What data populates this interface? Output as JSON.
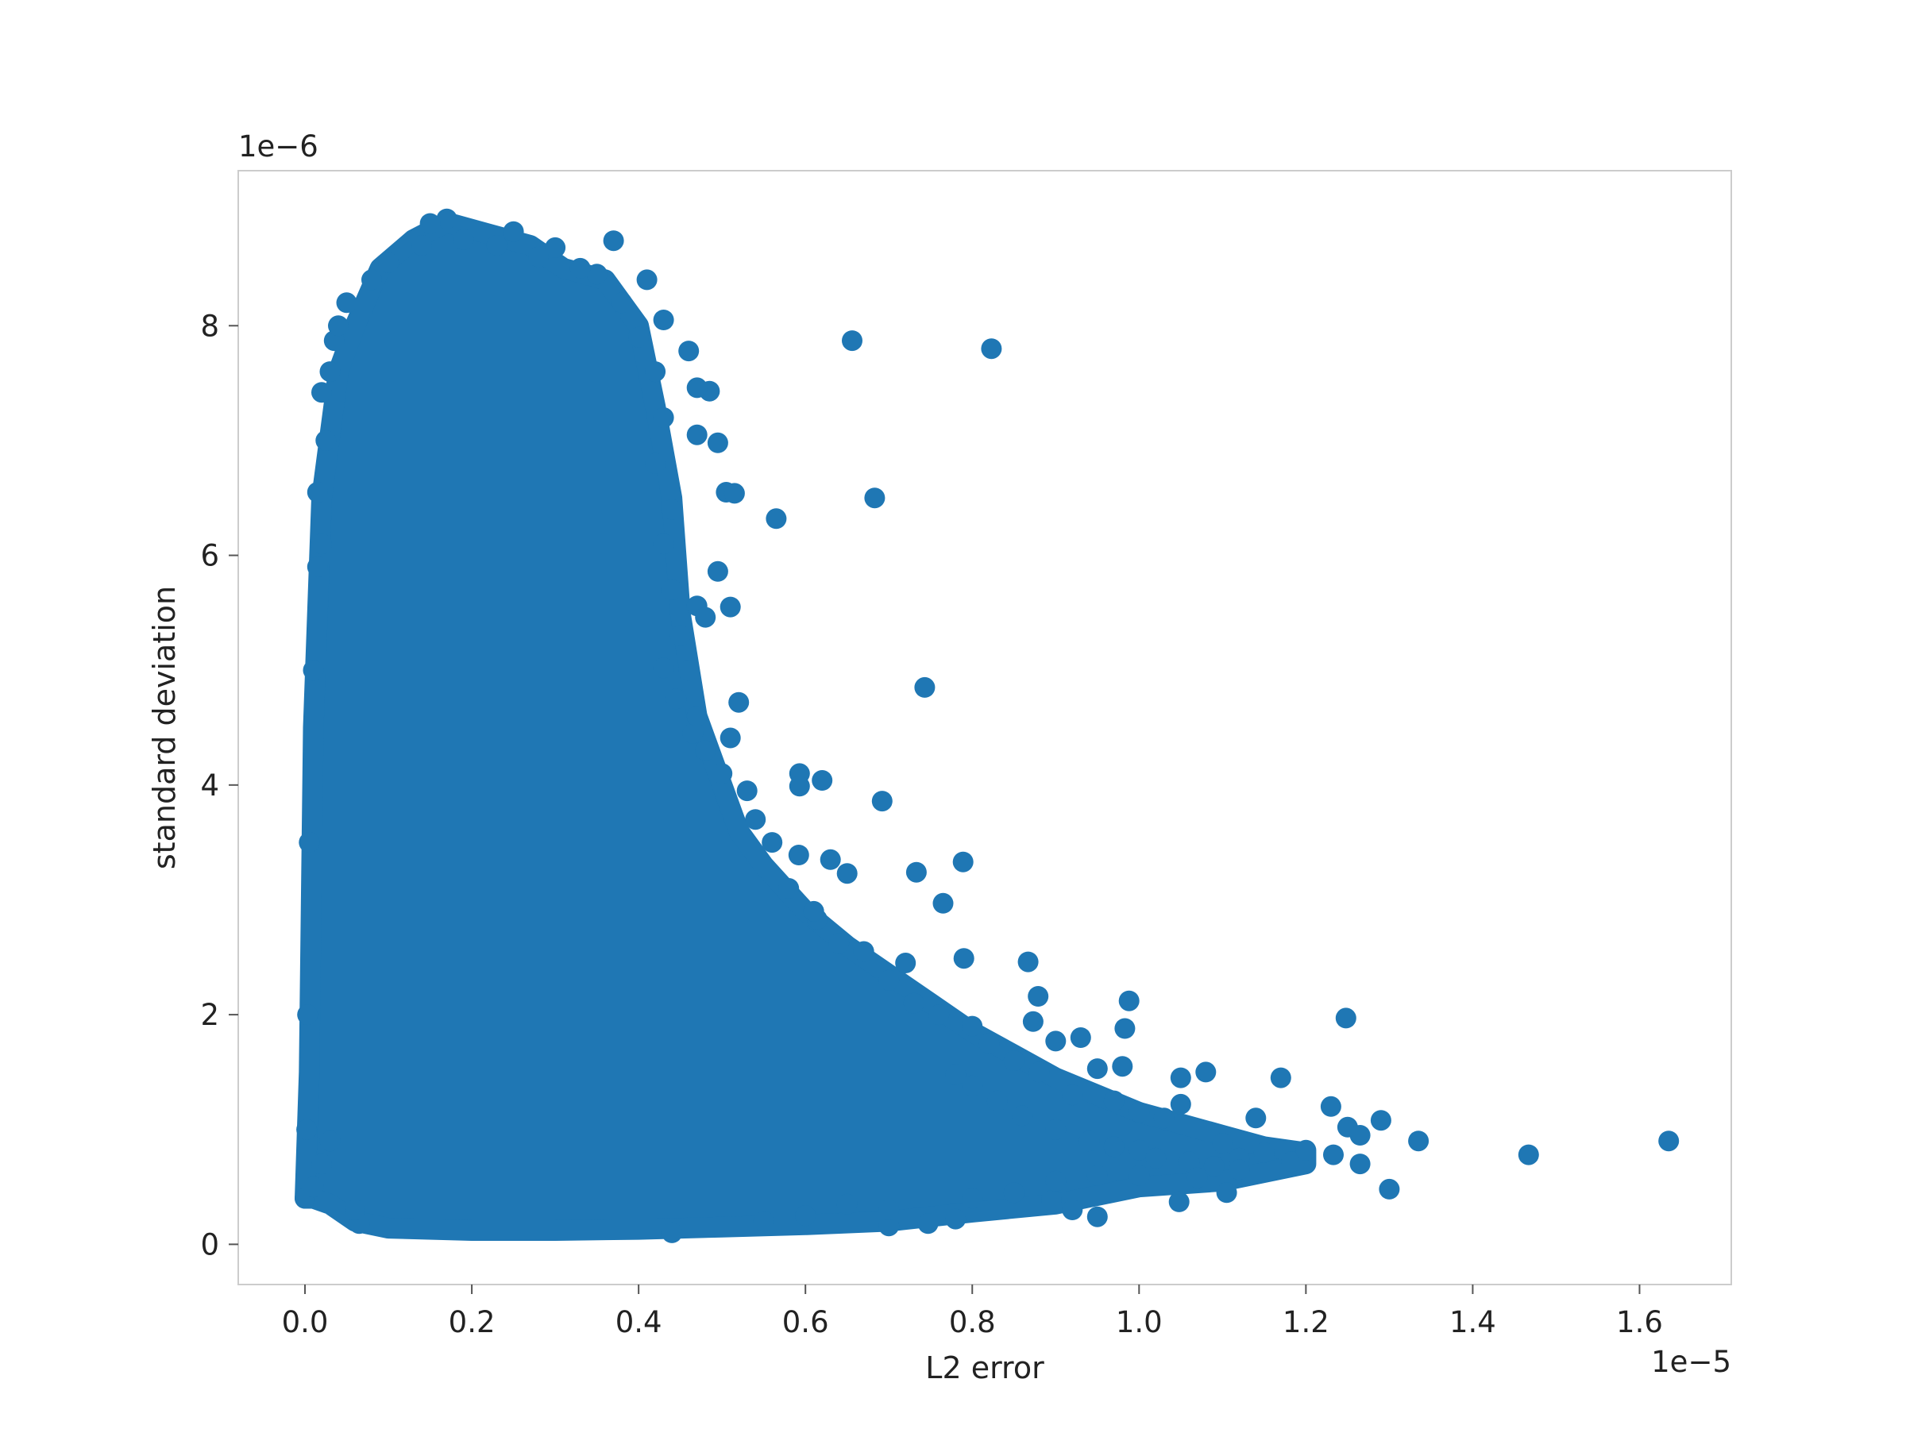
{
  "chart_data": {
    "type": "scatter",
    "title": "",
    "xlabel": "L2 error",
    "ylabel": "standard deviation",
    "x_offset_text": "1e−5",
    "y_offset_text": "1e−6",
    "xlim": [
      -0.08,
      1.71
    ],
    "ylim": [
      -0.35,
      9.35
    ],
    "x_ticks": [
      0.0,
      0.2,
      0.4,
      0.6,
      0.8,
      1.0,
      1.2,
      1.4,
      1.6
    ],
    "x_tick_labels": [
      "0.0",
      "0.2",
      "0.4",
      "0.6",
      "0.8",
      "1.0",
      "1.2",
      "1.4",
      "1.6"
    ],
    "y_ticks": [
      0,
      2,
      4,
      6,
      8
    ],
    "y_tick_labels": [
      "0",
      "2",
      "4",
      "6",
      "8"
    ],
    "grid": false,
    "legend": "none",
    "marker_color": "#1f77b4",
    "dense_region_outline": [
      [
        0.0,
        0.4
      ],
      [
        0.005,
        1.5
      ],
      [
        0.01,
        4.5
      ],
      [
        0.02,
        6.5
      ],
      [
        0.04,
        7.6
      ],
      [
        0.06,
        8.0
      ],
      [
        0.09,
        8.5
      ],
      [
        0.13,
        8.75
      ],
      [
        0.17,
        8.9
      ],
      [
        0.22,
        8.8
      ],
      [
        0.27,
        8.7
      ],
      [
        0.31,
        8.5
      ],
      [
        0.36,
        8.4
      ],
      [
        0.4,
        8.0
      ],
      [
        0.42,
        7.3
      ],
      [
        0.44,
        6.5
      ],
      [
        0.45,
        5.5
      ],
      [
        0.47,
        4.6
      ],
      [
        0.5,
        4.0
      ],
      [
        0.52,
        3.6
      ],
      [
        0.55,
        3.3
      ],
      [
        0.6,
        2.9
      ],
      [
        0.65,
        2.6
      ],
      [
        0.7,
        2.35
      ],
      [
        0.75,
        2.1
      ],
      [
        0.8,
        1.85
      ],
      [
        0.85,
        1.65
      ],
      [
        0.9,
        1.45
      ],
      [
        0.95,
        1.3
      ],
      [
        1.0,
        1.15
      ],
      [
        1.05,
        1.05
      ],
      [
        1.1,
        0.95
      ],
      [
        1.15,
        0.85
      ],
      [
        1.2,
        0.8
      ],
      [
        1.2,
        0.7
      ],
      [
        1.1,
        0.55
      ],
      [
        1.0,
        0.5
      ],
      [
        0.9,
        0.35
      ],
      [
        0.8,
        0.28
      ],
      [
        0.7,
        0.2
      ],
      [
        0.6,
        0.17
      ],
      [
        0.5,
        0.15
      ],
      [
        0.4,
        0.13
      ],
      [
        0.3,
        0.12
      ],
      [
        0.2,
        0.12
      ],
      [
        0.1,
        0.14
      ],
      [
        0.06,
        0.2
      ],
      [
        0.03,
        0.35
      ],
      [
        0.01,
        0.4
      ]
    ],
    "points": [
      [
        0.656,
        7.87
      ],
      [
        0.823,
        7.8
      ],
      [
        0.683,
        6.5
      ],
      [
        0.565,
        6.32
      ],
      [
        0.743,
        4.85
      ],
      [
        0.692,
        3.86
      ],
      [
        0.789,
        3.33
      ],
      [
        0.733,
        3.24
      ],
      [
        0.765,
        2.97
      ],
      [
        0.65,
        3.23
      ],
      [
        0.593,
        4.1
      ],
      [
        0.62,
        4.04
      ],
      [
        0.593,
        3.99
      ],
      [
        0.592,
        3.39
      ],
      [
        0.63,
        3.35
      ],
      [
        0.614,
        2.83
      ],
      [
        0.72,
        2.45
      ],
      [
        0.79,
        2.49
      ],
      [
        0.867,
        2.46
      ],
      [
        0.879,
        2.16
      ],
      [
        0.988,
        2.12
      ],
      [
        0.983,
        1.88
      ],
      [
        0.873,
        1.94
      ],
      [
        0.9,
        1.77
      ],
      [
        0.93,
        1.8
      ],
      [
        0.95,
        1.53
      ],
      [
        0.98,
        1.55
      ],
      [
        1.05,
        1.45
      ],
      [
        1.08,
        1.5
      ],
      [
        1.17,
        1.45
      ],
      [
        1.248,
        1.97
      ],
      [
        1.23,
        1.2
      ],
      [
        1.29,
        1.08
      ],
      [
        1.25,
        1.02
      ],
      [
        1.265,
        0.95
      ],
      [
        1.335,
        0.9
      ],
      [
        1.467,
        0.78
      ],
      [
        1.635,
        0.9
      ],
      [
        1.3,
        0.48
      ],
      [
        1.265,
        0.7
      ],
      [
        1.233,
        0.78
      ],
      [
        1.183,
        0.72
      ],
      [
        1.14,
        1.1
      ],
      [
        1.12,
        0.75
      ],
      [
        1.105,
        0.45
      ],
      [
        1.048,
        0.37
      ],
      [
        0.95,
        0.24
      ],
      [
        0.92,
        0.3
      ],
      [
        0.895,
        0.38
      ],
      [
        0.78,
        0.22
      ],
      [
        0.747,
        0.18
      ],
      [
        0.7,
        0.16
      ],
      [
        0.44,
        0.1
      ],
      [
        0.065,
        0.18
      ],
      [
        0.06,
        0.3
      ],
      [
        0.52,
        4.72
      ],
      [
        0.51,
        4.41
      ],
      [
        0.465,
        4.45
      ],
      [
        0.445,
        4.75
      ],
      [
        0.43,
        5.02
      ],
      [
        0.51,
        5.55
      ],
      [
        0.47,
        5.56
      ],
      [
        0.48,
        5.46
      ],
      [
        0.495,
        5.86
      ],
      [
        0.505,
        6.55
      ],
      [
        0.515,
        6.54
      ],
      [
        0.495,
        6.98
      ],
      [
        0.47,
        7.05
      ],
      [
        0.485,
        7.43
      ],
      [
        0.47,
        7.46
      ],
      [
        0.46,
        7.78
      ],
      [
        0.43,
        8.05
      ],
      [
        0.41,
        8.4
      ],
      [
        0.37,
        8.74
      ],
      [
        0.25,
        8.82
      ],
      [
        0.17,
        8.93
      ],
      [
        0.15,
        8.89
      ],
      [
        0.3,
        8.68
      ],
      [
        0.035,
        7.87
      ],
      [
        0.02,
        7.42
      ],
      [
        0.015,
        6.55
      ],
      [
        0.8,
        1.38
      ],
      [
        0.78,
        1.48
      ],
      [
        0.83,
        1.25
      ],
      [
        0.86,
        1.12
      ],
      [
        0.9,
        1.0
      ],
      [
        0.94,
        0.9
      ],
      [
        0.97,
        0.85
      ],
      [
        1.0,
        0.82
      ],
      [
        1.02,
        0.75
      ],
      [
        1.06,
        0.72
      ],
      [
        1.09,
        0.68
      ],
      [
        1.1,
        0.88
      ],
      [
        1.15,
        0.8
      ],
      [
        1.2,
        0.82
      ],
      [
        1.05,
        1.22
      ],
      [
        1.03,
        1.1
      ],
      [
        1.0,
        1.15
      ],
      [
        0.97,
        1.25
      ],
      [
        0.92,
        1.3
      ],
      [
        0.88,
        1.5
      ],
      [
        0.85,
        1.6
      ],
      [
        0.82,
        1.75
      ],
      [
        0.8,
        1.9
      ],
      [
        0.76,
        2.0
      ],
      [
        0.73,
        2.1
      ],
      [
        0.7,
        2.3
      ],
      [
        0.67,
        2.55
      ],
      [
        0.64,
        2.62
      ],
      [
        0.61,
        2.9
      ],
      [
        0.58,
        3.1
      ],
      [
        0.56,
        3.5
      ],
      [
        0.54,
        3.7
      ],
      [
        0.53,
        3.95
      ],
      [
        0.5,
        4.1
      ],
      [
        0.48,
        4.3
      ],
      [
        0.47,
        4.6
      ],
      [
        0.46,
        5.0
      ],
      [
        0.45,
        5.3
      ],
      [
        0.44,
        5.7
      ],
      [
        0.43,
        6.1
      ],
      [
        0.44,
        6.4
      ],
      [
        0.42,
        6.8
      ],
      [
        0.43,
        7.2
      ],
      [
        0.42,
        7.6
      ],
      [
        0.4,
        7.9
      ],
      [
        0.38,
        8.2
      ],
      [
        0.35,
        8.45
      ],
      [
        0.33,
        8.5
      ],
      [
        0.28,
        8.6
      ],
      [
        0.23,
        8.7
      ],
      [
        0.19,
        8.75
      ],
      [
        0.14,
        8.7
      ],
      [
        0.1,
        8.55
      ],
      [
        0.08,
        8.4
      ],
      [
        0.05,
        8.2
      ],
      [
        0.04,
        8.0
      ],
      [
        0.03,
        7.6
      ],
      [
        0.025,
        7.0
      ],
      [
        0.02,
        6.1
      ],
      [
        0.015,
        5.9
      ],
      [
        0.01,
        5.0
      ],
      [
        0.005,
        3.5
      ],
      [
        0.003,
        2.0
      ],
      [
        0.002,
        1.0
      ],
      [
        0.0,
        0.4
      ],
      [
        0.01,
        0.5
      ],
      [
        0.02,
        0.7
      ],
      [
        0.03,
        0.9
      ],
      [
        0.7,
        0.3
      ],
      [
        0.65,
        0.35
      ],
      [
        0.6,
        0.25
      ],
      [
        0.55,
        0.2
      ],
      [
        0.8,
        0.4
      ],
      [
        0.85,
        0.45
      ],
      [
        0.9,
        0.55
      ],
      [
        0.95,
        0.6
      ],
      [
        1.0,
        0.6
      ],
      [
        1.07,
        0.58
      ],
      [
        1.12,
        0.65
      ]
    ]
  }
}
